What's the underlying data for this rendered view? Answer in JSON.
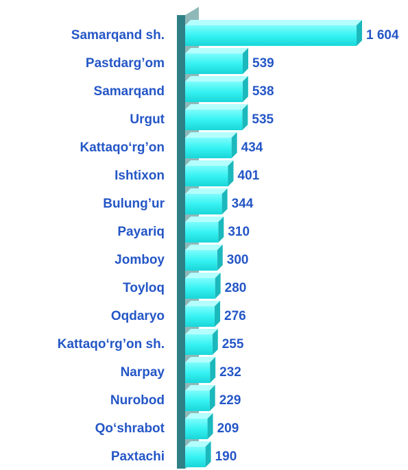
{
  "chart_data": {
    "type": "bar",
    "categories": [
      "Samarqand sh.",
      "Pastdarg’om",
      "Samarqand",
      "Urgut",
      "Kattaqo‘rg’on",
      "Ishtixon",
      "Bulung’ur",
      "Payariq",
      "Jomboy",
      "Toyloq",
      "Oqdaryo",
      "Kattaqo‘rg’on sh.",
      "Narpay",
      "Nurobod",
      "Qo‘shrabot",
      "Paxtachi"
    ],
    "values": [
      1604,
      539,
      538,
      535,
      434,
      401,
      344,
      310,
      300,
      280,
      276,
      255,
      232,
      229,
      209,
      190
    ],
    "value_labels": [
      "1 604",
      "539",
      "538",
      "535",
      "434",
      "401",
      "344",
      "310",
      "300",
      "280",
      "276",
      "255",
      "232",
      "229",
      "209",
      "190"
    ],
    "color": "#3ef6f6"
  }
}
